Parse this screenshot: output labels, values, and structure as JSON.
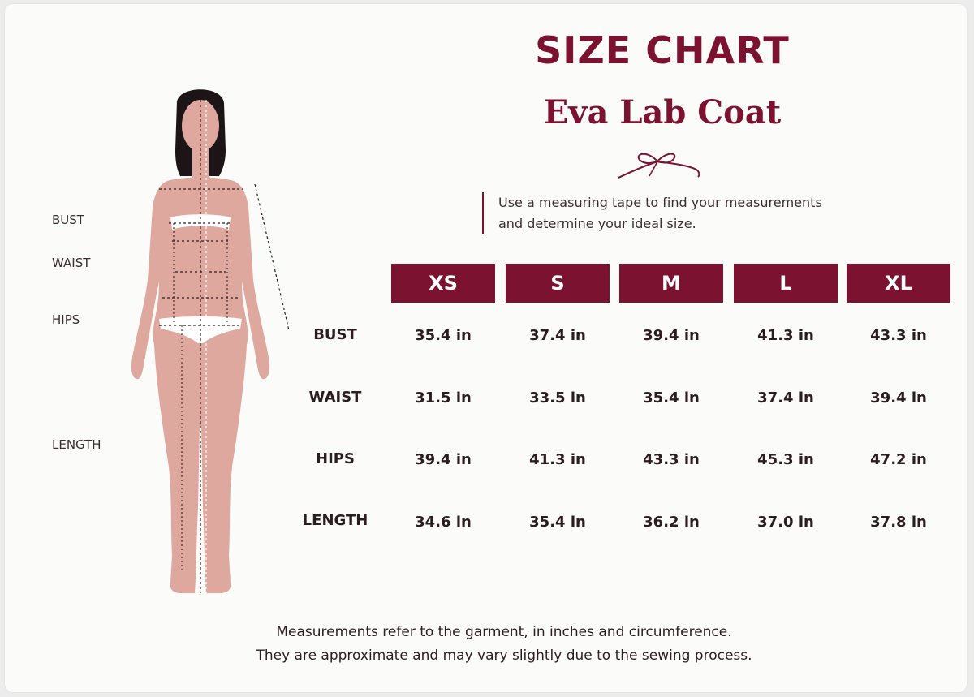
{
  "header": {
    "title": "SIZE CHART",
    "subtitle": "Eva Lab Coat",
    "ornament_icon": "ribbon-bow-icon"
  },
  "intro": {
    "line1": "Use a measuring tape to find your measurements",
    "line2": "and determine your ideal size."
  },
  "figure": {
    "labels": {
      "bust": "BUST",
      "waist": "WAIST",
      "hips": "HIPS",
      "length": "LENGTH"
    }
  },
  "table": {
    "sizes": [
      "XS",
      "S",
      "M",
      "L",
      "XL"
    ],
    "rows": [
      {
        "label": "BUST",
        "values": [
          "35.4 in",
          "37.4 in",
          "39.4 in",
          "41.3 in",
          "43.3 in"
        ]
      },
      {
        "label": "WAIST",
        "values": [
          "31.5 in",
          "33.5 in",
          "35.4 in",
          "37.4 in",
          "39.4 in"
        ]
      },
      {
        "label": "HIPS",
        "values": [
          "39.4 in",
          "41.3 in",
          "43.3 in",
          "45.3 in",
          "47.2 in"
        ]
      },
      {
        "label": "LENGTH",
        "values": [
          "34.6 in",
          "35.4 in",
          "36.2 in",
          "37.0 in",
          "37.8 in"
        ]
      }
    ]
  },
  "footer": {
    "line1": "Measurements refer to the garment, in inches and circumference.",
    "line2": "They are approximate and may vary slightly due to the sewing process."
  },
  "colors": {
    "accent": "#7b1230",
    "skin": "#dfa89f",
    "hair": "#1c1416",
    "background": "#fbfbfa"
  }
}
